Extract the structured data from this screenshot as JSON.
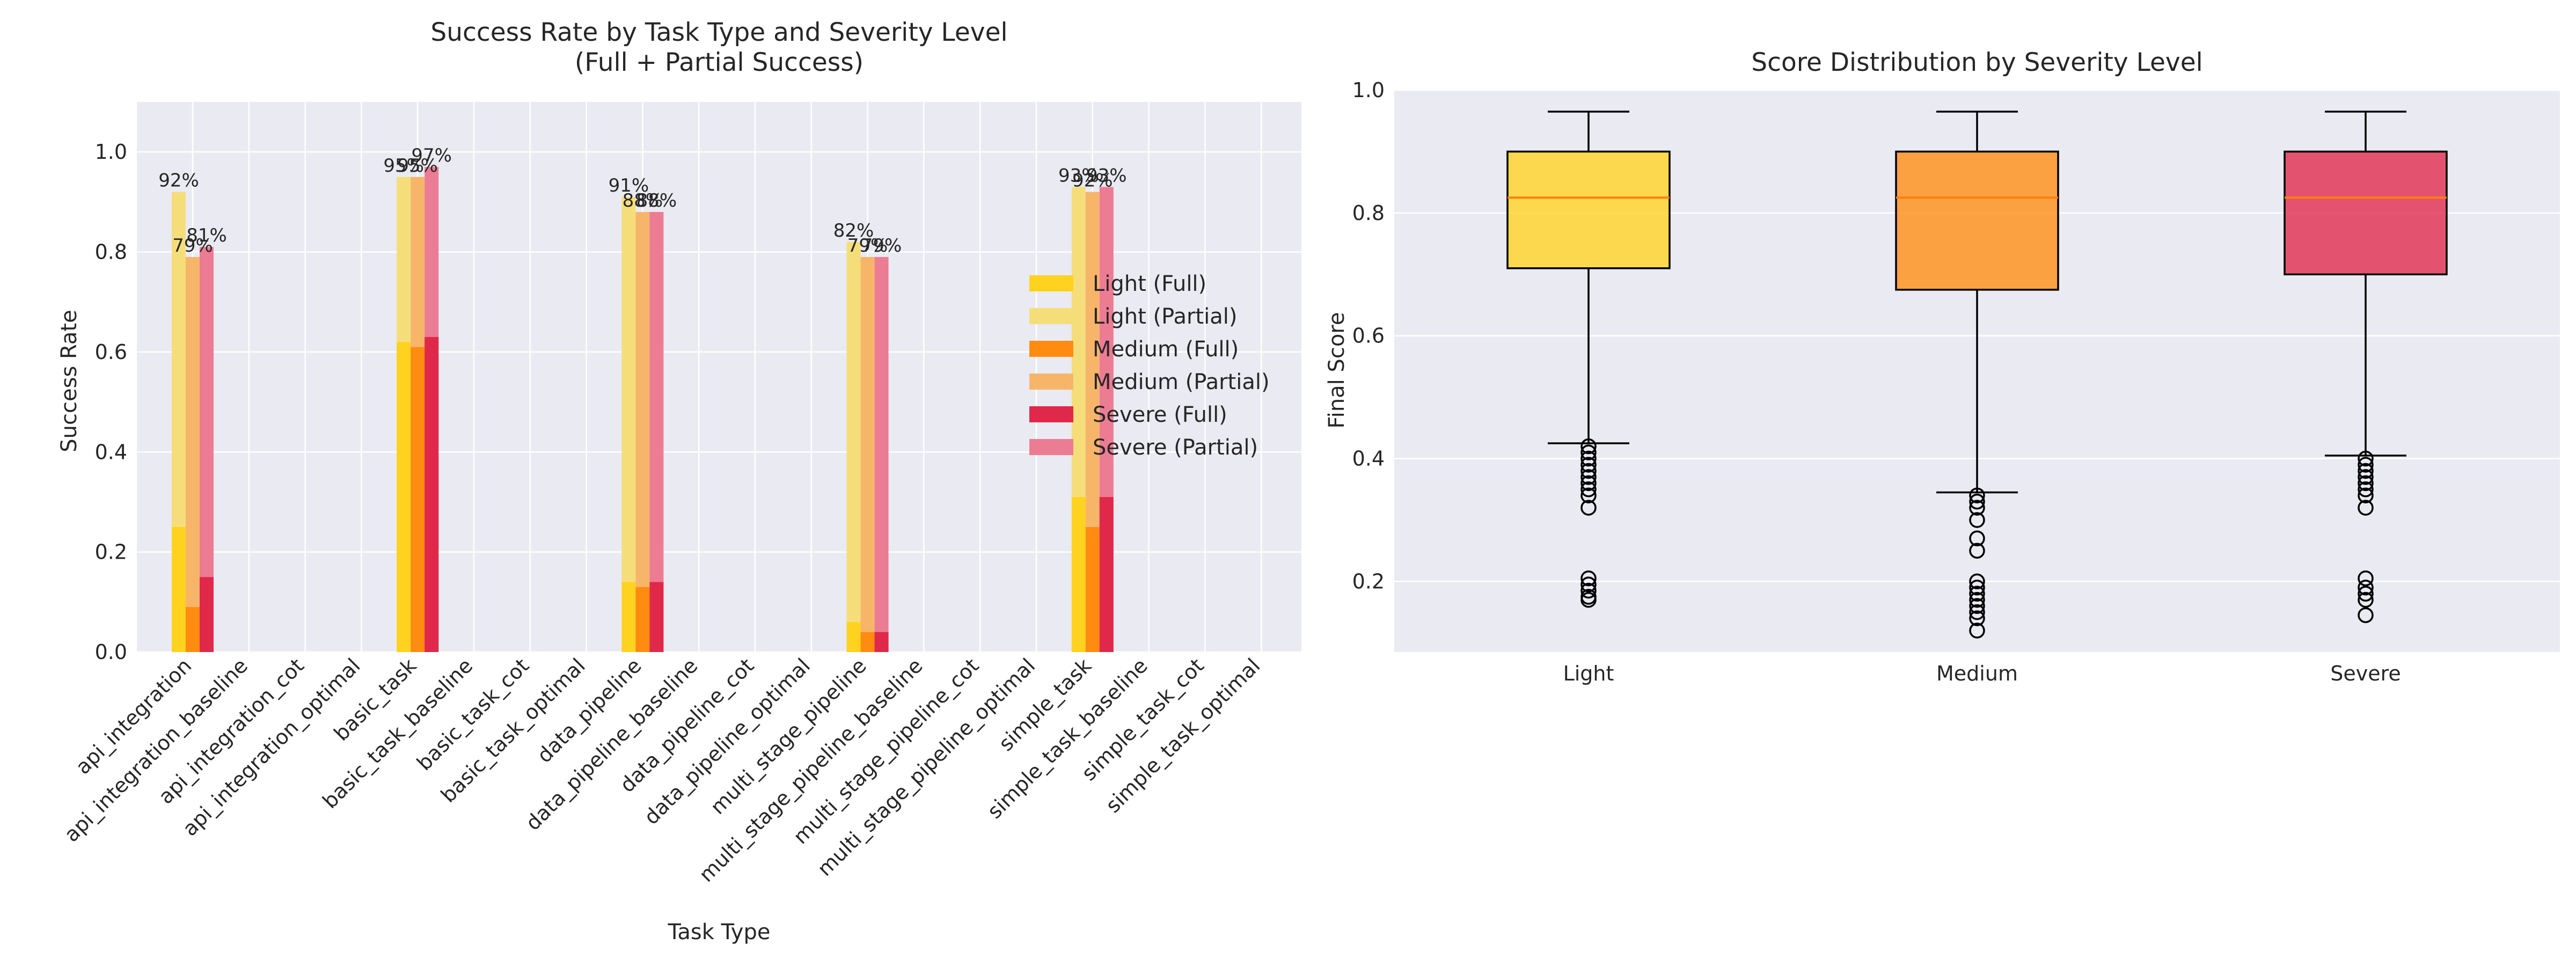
{
  "colors": {
    "background": "#eaeaf2",
    "grid": "#ffffff",
    "light_full": "#FFD21F",
    "light_partial": "#F5DE7A",
    "medium_full": "#FF8C10",
    "medium_partial": "#F7B56A",
    "severe_full": "#E0284A",
    "severe_partial": "#EC7C94",
    "median": "#FF7F0E"
  },
  "chart_data": [
    {
      "type": "bar",
      "title": "Success Rate by Task Type and Severity Level",
      "subtitle": "(Full + Partial Success)",
      "xlabel": "Task Type",
      "ylabel": "Success Rate",
      "ylim": [
        0,
        1.1
      ],
      "yticks": [
        "0.0",
        "0.2",
        "0.4",
        "0.6",
        "0.8",
        "1.0"
      ],
      "grid": true,
      "legend_position": "right",
      "categories": [
        "api_integration",
        "api_integration_baseline",
        "api_integration_cot",
        "api_integration_optimal",
        "basic_task",
        "basic_task_baseline",
        "basic_task_cot",
        "basic_task_optimal",
        "data_pipeline",
        "data_pipeline_baseline",
        "data_pipeline_cot",
        "data_pipeline_optimal",
        "multi_stage_pipeline",
        "multi_stage_pipeline_baseline",
        "multi_stage_pipeline_cot",
        "multi_stage_pipeline_optimal",
        "simple_task",
        "simple_task_baseline",
        "simple_task_cot",
        "simple_task_optimal"
      ],
      "series": [
        {
          "name": "Light (Full)",
          "color_key": "light_full",
          "values": [
            0.25,
            null,
            null,
            null,
            0.62,
            null,
            null,
            null,
            0.14,
            null,
            null,
            null,
            0.06,
            null,
            null,
            null,
            0.31,
            null,
            null,
            null
          ]
        },
        {
          "name": "Light (Partial)",
          "color_key": "light_partial",
          "values": [
            0.92,
            null,
            null,
            null,
            0.95,
            null,
            null,
            null,
            0.91,
            null,
            null,
            null,
            0.82,
            null,
            null,
            null,
            0.93,
            null,
            null,
            null
          ]
        },
        {
          "name": "Medium (Full)",
          "color_key": "medium_full",
          "values": [
            0.09,
            null,
            null,
            null,
            0.61,
            null,
            null,
            null,
            0.13,
            null,
            null,
            null,
            0.04,
            null,
            null,
            null,
            0.25,
            null,
            null,
            null
          ]
        },
        {
          "name": "Medium (Partial)",
          "color_key": "medium_partial",
          "values": [
            0.79,
            null,
            null,
            null,
            0.95,
            null,
            null,
            null,
            0.88,
            null,
            null,
            null,
            0.79,
            null,
            null,
            null,
            0.92,
            null,
            null,
            null
          ]
        },
        {
          "name": "Severe (Full)",
          "color_key": "severe_full",
          "values": [
            0.15,
            null,
            null,
            null,
            0.63,
            null,
            null,
            null,
            0.14,
            null,
            null,
            null,
            0.04,
            null,
            null,
            null,
            0.31,
            null,
            null,
            null
          ]
        },
        {
          "name": "Severe (Partial)",
          "color_key": "severe_partial",
          "values": [
            0.81,
            null,
            null,
            null,
            0.97,
            null,
            null,
            null,
            0.88,
            null,
            null,
            null,
            0.79,
            null,
            null,
            null,
            0.93,
            null,
            null,
            null
          ]
        }
      ],
      "data_labels": [
        {
          "category": "api_integration",
          "series": "Light",
          "text": "92%"
        },
        {
          "category": "api_integration",
          "series": "Medium",
          "text": "79%"
        },
        {
          "category": "api_integration",
          "series": "Severe",
          "text": "81%"
        },
        {
          "category": "basic_task",
          "series": "Light",
          "text": "95%"
        },
        {
          "category": "basic_task",
          "series": "Medium",
          "text": "95%"
        },
        {
          "category": "basic_task",
          "series": "Severe",
          "text": "97%"
        },
        {
          "category": "data_pipeline",
          "series": "Light",
          "text": "91%"
        },
        {
          "category": "data_pipeline",
          "series": "Medium",
          "text": "88%"
        },
        {
          "category": "data_pipeline",
          "series": "Severe",
          "text": "88%"
        },
        {
          "category": "multi_stage_pipeline",
          "series": "Light",
          "text": "82%"
        },
        {
          "category": "multi_stage_pipeline",
          "series": "Medium",
          "text": "79%"
        },
        {
          "category": "multi_stage_pipeline",
          "series": "Severe",
          "text": "79%"
        },
        {
          "category": "simple_task",
          "series": "Light",
          "text": "93%"
        },
        {
          "category": "simple_task",
          "series": "Medium",
          "text": "92%"
        },
        {
          "category": "simple_task",
          "series": "Severe",
          "text": "93%"
        }
      ]
    },
    {
      "type": "box",
      "title": "Score Distribution by Severity Level",
      "ylabel": "Final Score",
      "xlabel": "",
      "ylim": [
        0.085,
        1.0
      ],
      "yticks": [
        "0.2",
        "0.4",
        "0.6",
        "0.8",
        "1.0"
      ],
      "grid": true,
      "categories": [
        "Light",
        "Medium",
        "Severe"
      ],
      "boxes": [
        {
          "name": "Light",
          "color_key": "light_full",
          "whisker_low": 0.425,
          "q1": 0.71,
          "median": 0.825,
          "q3": 0.9,
          "whisker_high": 0.965,
          "outliers": [
            0.42,
            0.41,
            0.4,
            0.39,
            0.38,
            0.37,
            0.36,
            0.35,
            0.34,
            0.32,
            0.205,
            0.195,
            0.185,
            0.175,
            0.17
          ]
        },
        {
          "name": "Medium",
          "color_key": "medium_full",
          "whisker_low": 0.345,
          "q1": 0.675,
          "median": 0.825,
          "q3": 0.9,
          "whisker_high": 0.965,
          "outliers": [
            0.34,
            0.33,
            0.32,
            0.3,
            0.27,
            0.25,
            0.2,
            0.19,
            0.18,
            0.17,
            0.16,
            0.15,
            0.14,
            0.12
          ]
        },
        {
          "name": "Severe",
          "color_key": "severe_full",
          "whisker_low": 0.405,
          "q1": 0.7,
          "median": 0.825,
          "q3": 0.9,
          "whisker_high": 0.965,
          "outliers": [
            0.4,
            0.39,
            0.38,
            0.37,
            0.36,
            0.35,
            0.34,
            0.32,
            0.205,
            0.19,
            0.18,
            0.17,
            0.145
          ]
        }
      ]
    }
  ]
}
